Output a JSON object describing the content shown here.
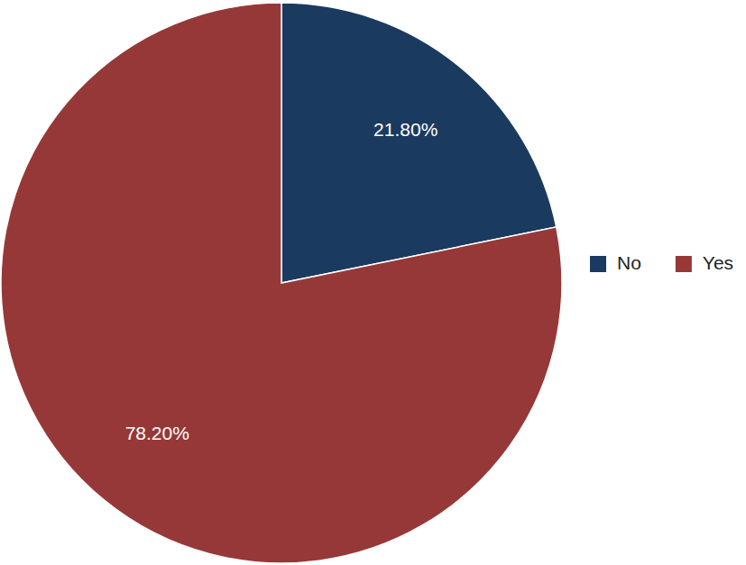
{
  "chart_data": {
    "type": "pie",
    "categories": [
      "No",
      "Yes"
    ],
    "values": [
      21.8,
      78.2
    ],
    "value_labels": [
      "21.80%",
      "78.20%"
    ],
    "colors": [
      "#1b3a5f",
      "#973838"
    ],
    "data_labels": true,
    "legend": "right"
  }
}
